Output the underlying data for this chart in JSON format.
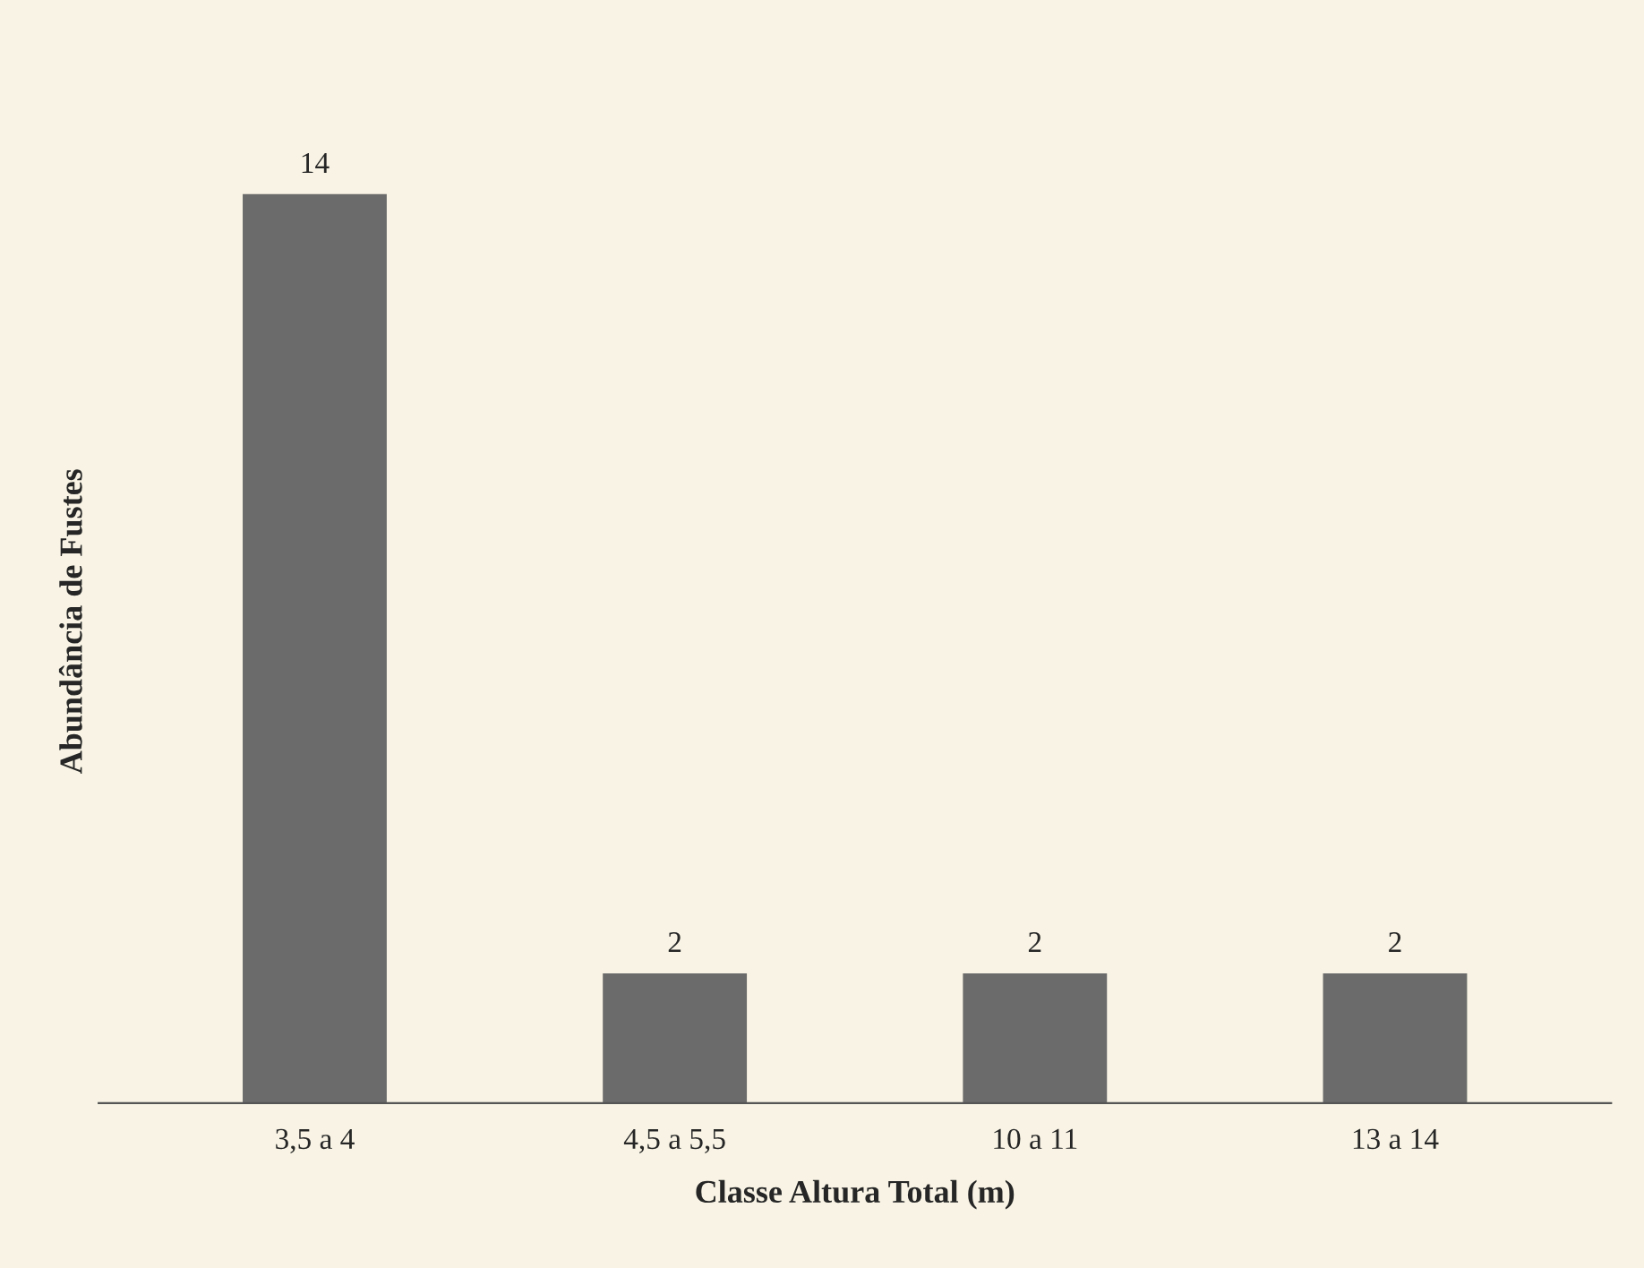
{
  "chart_data": {
    "type": "bar",
    "xlabel": "Classe Altura Total (m)",
    "ylabel": "Abundância de Fustes",
    "categories": [
      "3,5 a 4",
      "4,5 a 5,5",
      "10 a 11",
      "13 a 14"
    ],
    "values": [
      14,
      2,
      2,
      2
    ],
    "color": "#6b6b6b",
    "data_labels": true,
    "tick_labels": "x",
    "grid": false
  }
}
